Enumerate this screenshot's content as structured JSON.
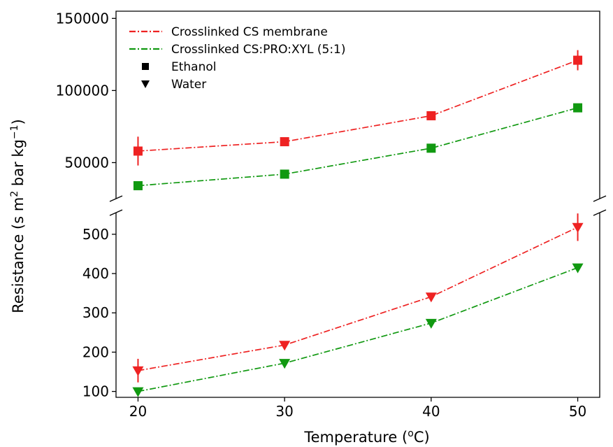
{
  "chart_data": {
    "type": "line",
    "xlabel": "Temperature (",
    "xlabel_sup": "o",
    "xlabel_unit": "C)",
    "ylabel": "Resistance (s m",
    "ylabel_sup1": "2",
    "ylabel_mid": " bar kg",
    "ylabel_sup2": "−1",
    "ylabel_end": ")",
    "x": [
      20,
      30,
      40,
      50
    ],
    "x_ticks": [
      20,
      30,
      40,
      50
    ],
    "xlim": [
      18.5,
      51.5
    ],
    "broken_y_axis": true,
    "upper_panel": {
      "ylim": [
        25000,
        155000
      ],
      "y_ticks": [
        50000,
        100000,
        150000
      ],
      "y_tick_labels": [
        "50000",
        "100000",
        "150000"
      ]
    },
    "lower_panel": {
      "ylim": [
        85,
        555
      ],
      "y_ticks": [
        100,
        200,
        300,
        400,
        500
      ],
      "y_tick_labels": [
        "100",
        "200",
        "300",
        "400",
        "500"
      ]
    },
    "series": [
      {
        "name": "Crosslinked CS membrane",
        "solvent": "Ethanol",
        "panel": "upper",
        "marker": "square",
        "color": "#ee2222",
        "values": [
          58000,
          64500,
          82500,
          121000
        ],
        "errors": [
          10000,
          2000,
          2000,
          7000
        ]
      },
      {
        "name": "Crosslinked CS:PRO:XYL (5:1)",
        "solvent": "Ethanol",
        "panel": "upper",
        "marker": "square",
        "color": "#119911",
        "values": [
          34000,
          42000,
          60000,
          88000
        ],
        "errors": [
          0,
          0,
          0,
          0
        ]
      },
      {
        "name": "Crosslinked CS membrane",
        "solvent": "Water",
        "panel": "lower",
        "marker": "triangle",
        "color": "#ee2222",
        "values": [
          153,
          218,
          341,
          518
        ],
        "errors": [
          30,
          0,
          0,
          35
        ]
      },
      {
        "name": "Crosslinked CS:PRO:XYL (5:1)",
        "solvent": "Water",
        "panel": "lower",
        "marker": "triangle",
        "color": "#119911",
        "values": [
          100,
          172,
          274,
          415
        ],
        "errors": [
          0,
          0,
          0,
          0
        ]
      }
    ],
    "legend": {
      "placement": "top-left",
      "entries": [
        {
          "label": "Crosslinked CS membrane",
          "kind": "line",
          "color": "#ee2222"
        },
        {
          "label": "Crosslinked CS:PRO:XYL (5:1)",
          "kind": "line",
          "color": "#119911"
        },
        {
          "label": "Ethanol",
          "kind": "marker",
          "marker": "square",
          "color": "#000000"
        },
        {
          "label": "Water",
          "kind": "marker",
          "marker": "triangle",
          "color": "#000000"
        }
      ]
    },
    "grid": false
  }
}
